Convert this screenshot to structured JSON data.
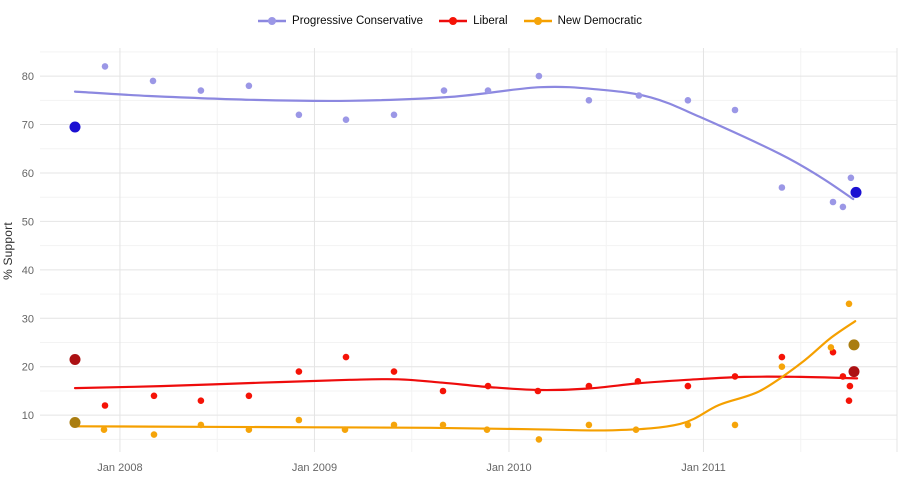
{
  "y_axis_title": "% Support",
  "legend": {
    "items": [
      {
        "label": "Progressive Conservative"
      },
      {
        "label": "Liberal"
      },
      {
        "label": "New Democratic"
      }
    ]
  },
  "colors": {
    "background": "#ffffff",
    "grid_major": "#e4e4e4",
    "grid_minor": "#f3f3f3",
    "axis_text": "#666666",
    "axis_title": "#2f2f2f",
    "legend_text": "#0a0a0a"
  },
  "chart_data": {
    "type": "scatter",
    "title": "",
    "xlabel": "",
    "ylabel": "% Support",
    "grid": "on",
    "legend_position": "top-center",
    "x_unit": "decimal_year",
    "x_domain": [
      2007.589,
      2011.995
    ],
    "y_domain": [
      2.4,
      85.8
    ],
    "x_ticks": [
      {
        "label": "Jan 2008",
        "year": 2008
      },
      {
        "label": "Jan 2009",
        "year": 2009
      },
      {
        "label": "Jan 2010",
        "year": 2010
      },
      {
        "label": "Jan 2011",
        "year": 2011
      }
    ],
    "x_grid_major": [
      2008,
      2009,
      2010,
      2011,
      2012
    ],
    "x_grid_minor": [
      2008.5,
      2009.5,
      2010.5,
      2011.5
    ],
    "y_ticks": [
      10,
      20,
      30,
      40,
      50,
      60,
      70,
      80
    ],
    "y_grid_minor": [
      5,
      15,
      25,
      35,
      45,
      55,
      65,
      75,
      85
    ],
    "series": [
      {
        "name": "Progressive Conservative",
        "color_point": "#9b97e6",
        "color_line": "#8c88e0",
        "color_highlight": "#1b10d2",
        "points": [
          [
            2007.923,
            82
          ],
          [
            2008.17,
            79
          ],
          [
            2008.416,
            77
          ],
          [
            2008.663,
            78
          ],
          [
            2008.92,
            72
          ],
          [
            2009.162,
            71
          ],
          [
            2009.409,
            72
          ],
          [
            2009.666,
            77
          ],
          [
            2009.892,
            77
          ],
          [
            2010.154,
            80
          ],
          [
            2010.411,
            75
          ],
          [
            2010.668,
            76
          ],
          [
            2010.92,
            75
          ],
          [
            2011.162,
            73
          ],
          [
            2011.403,
            57
          ],
          [
            2011.666,
            54
          ],
          [
            2011.717,
            53
          ],
          [
            2011.758,
            59
          ]
        ],
        "highlight_points": [
          [
            2007.769,
            69.5
          ],
          [
            2011.784,
            56
          ]
        ],
        "trend": [
          [
            2007.769,
            76.8
          ],
          [
            2008.15,
            75.9
          ],
          [
            2008.67,
            75.1
          ],
          [
            2009.18,
            74.9
          ],
          [
            2009.7,
            75.7
          ],
          [
            2010.16,
            77.7
          ],
          [
            2010.47,
            77.2
          ],
          [
            2010.73,
            75.6
          ],
          [
            2010.98,
            71.6
          ],
          [
            2011.39,
            64.0
          ],
          [
            2011.6,
            59.2
          ],
          [
            2011.77,
            54.6
          ]
        ]
      },
      {
        "name": "Liberal",
        "color_point": "#f51307",
        "color_line": "#ee0c0c",
        "color_highlight": "#ac1113",
        "points": [
          [
            2007.923,
            12
          ],
          [
            2008.175,
            14
          ],
          [
            2008.416,
            13
          ],
          [
            2008.663,
            14
          ],
          [
            2008.92,
            19
          ],
          [
            2009.162,
            22
          ],
          [
            2009.409,
            19
          ],
          [
            2009.661,
            15
          ],
          [
            2009.892,
            16
          ],
          [
            2010.149,
            15
          ],
          [
            2010.411,
            16
          ],
          [
            2010.663,
            17
          ],
          [
            2010.92,
            16
          ],
          [
            2011.162,
            18
          ],
          [
            2011.403,
            22
          ],
          [
            2011.666,
            23
          ],
          [
            2011.717,
            18
          ],
          [
            2011.753,
            16
          ],
          [
            2011.748,
            13
          ]
        ],
        "highlight_points": [
          [
            2007.769,
            21.5
          ],
          [
            2011.774,
            19
          ]
        ],
        "trend": [
          [
            2007.769,
            15.6
          ],
          [
            2008.21,
            16.0
          ],
          [
            2008.72,
            16.7
          ],
          [
            2009.18,
            17.3
          ],
          [
            2009.43,
            17.4
          ],
          [
            2009.66,
            16.7
          ],
          [
            2009.9,
            15.8
          ],
          [
            2010.16,
            15.2
          ],
          [
            2010.41,
            15.5
          ],
          [
            2010.67,
            16.6
          ],
          [
            2010.92,
            17.3
          ],
          [
            2011.21,
            17.9
          ],
          [
            2011.5,
            17.9
          ],
          [
            2011.79,
            17.6
          ]
        ]
      },
      {
        "name": "New Democratic",
        "color_point": "#f5a40a",
        "color_line": "#f5a000",
        "color_highlight": "#aa7d10",
        "points": [
          [
            2007.918,
            7
          ],
          [
            2008.175,
            6
          ],
          [
            2008.416,
            8
          ],
          [
            2008.663,
            7
          ],
          [
            2008.92,
            9
          ],
          [
            2009.157,
            7
          ],
          [
            2009.409,
            8
          ],
          [
            2009.661,
            8
          ],
          [
            2009.887,
            7
          ],
          [
            2010.154,
            5
          ],
          [
            2010.411,
            8
          ],
          [
            2010.653,
            7
          ],
          [
            2010.92,
            8
          ],
          [
            2011.162,
            8
          ],
          [
            2011.403,
            20
          ],
          [
            2011.655,
            24
          ],
          [
            2011.748,
            33
          ]
        ],
        "highlight_points": [
          [
            2007.769,
            8.5
          ],
          [
            2011.774,
            24.5
          ]
        ],
        "trend": [
          [
            2007.769,
            7.7
          ],
          [
            2008.4,
            7.6
          ],
          [
            2009.0,
            7.5
          ],
          [
            2009.6,
            7.4
          ],
          [
            2010.1,
            7.1
          ],
          [
            2010.55,
            6.9
          ],
          [
            2010.88,
            8.2
          ],
          [
            2011.08,
            12.1
          ],
          [
            2011.29,
            15.0
          ],
          [
            2011.5,
            20.7
          ],
          [
            2011.65,
            25.8
          ],
          [
            2011.78,
            29.4
          ]
        ]
      }
    ]
  }
}
